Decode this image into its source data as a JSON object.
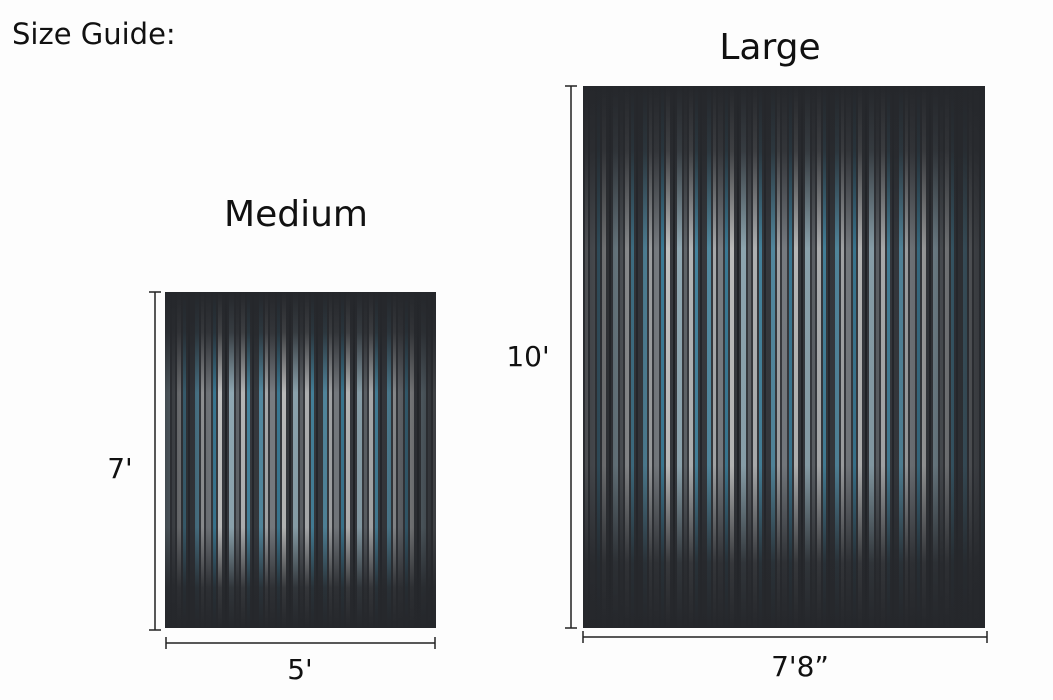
{
  "title": "Size Guide:",
  "rugs": [
    {
      "label": "Medium",
      "height": "7'",
      "width": "5'"
    },
    {
      "label": "Large",
      "height": "10'",
      "width": "7'8”"
    }
  ]
}
